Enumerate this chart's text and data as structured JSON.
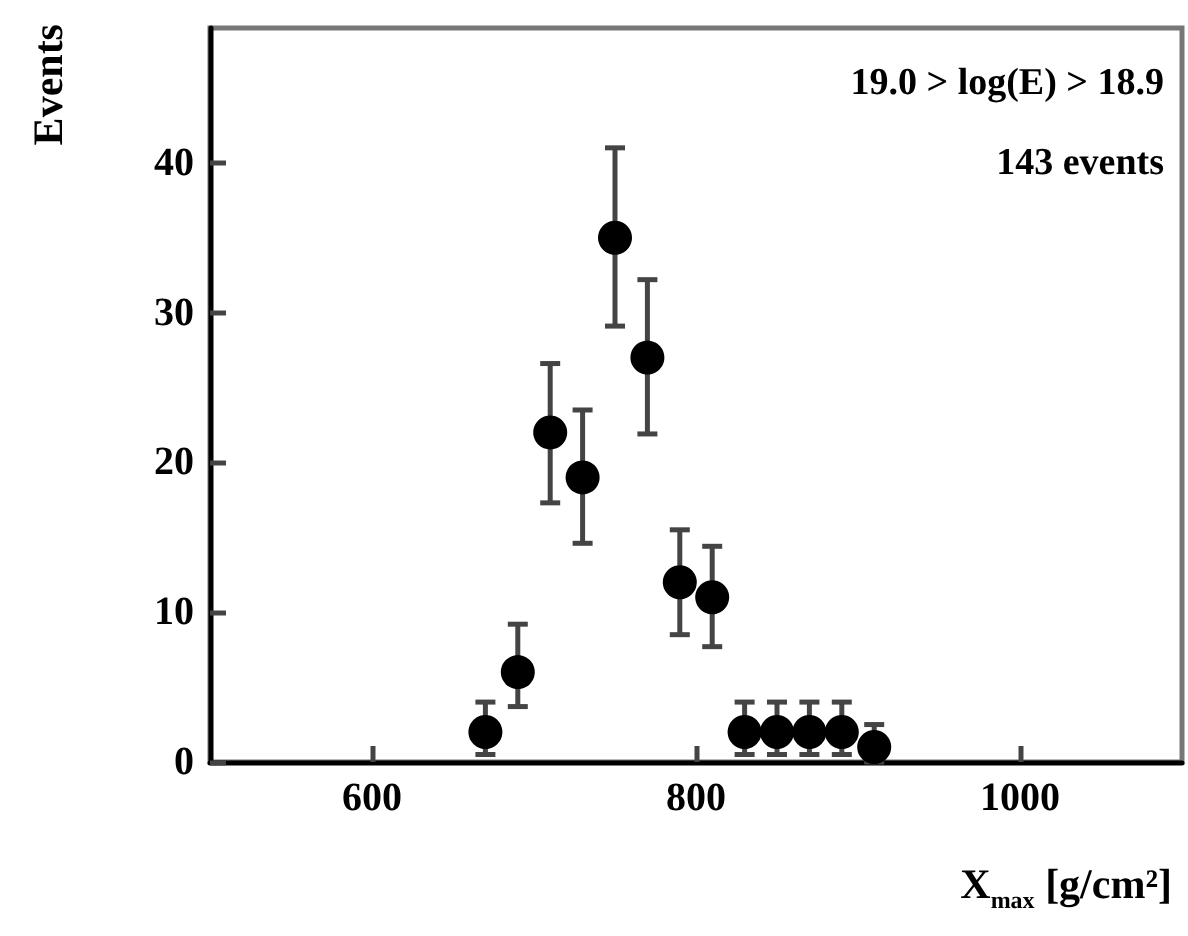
{
  "chart_data": {
    "type": "scatter",
    "xlabel": "X$_{max}$ [g/cm²]",
    "ylabel": "Events",
    "annotations": [
      "19.0 > log(E) > 18.9",
      "143 events"
    ],
    "x": [
      670,
      690,
      710,
      730,
      750,
      770,
      790,
      810,
      830,
      850,
      870,
      890,
      910
    ],
    "series": [
      {
        "color": "#000000",
        "values": [
          2,
          6,
          22,
          19,
          35,
          27,
          12,
          11,
          2,
          2,
          2,
          2,
          1
        ],
        "errors": [
          [
            0.5,
            4
          ],
          [
            3.7,
            9.2
          ],
          [
            17.3,
            26.6
          ],
          [
            14.6,
            23.5
          ],
          [
            29.1,
            41
          ],
          [
            21.9,
            32.2
          ],
          [
            8.5,
            15.5
          ],
          [
            7.7,
            14.4
          ],
          [
            0.5,
            4
          ],
          [
            0.5,
            4
          ],
          [
            0.5,
            4
          ],
          [
            0.5,
            4
          ],
          [
            0,
            2.5
          ]
        ]
      }
    ],
    "xlim": [
      500,
      1100
    ],
    "xticks": [
      600,
      800,
      1000
    ],
    "ylim": [
      0,
      49
    ],
    "yticks": [
      0,
      10,
      20,
      30,
      40
    ],
    "marker": "circle",
    "grid": false
  }
}
